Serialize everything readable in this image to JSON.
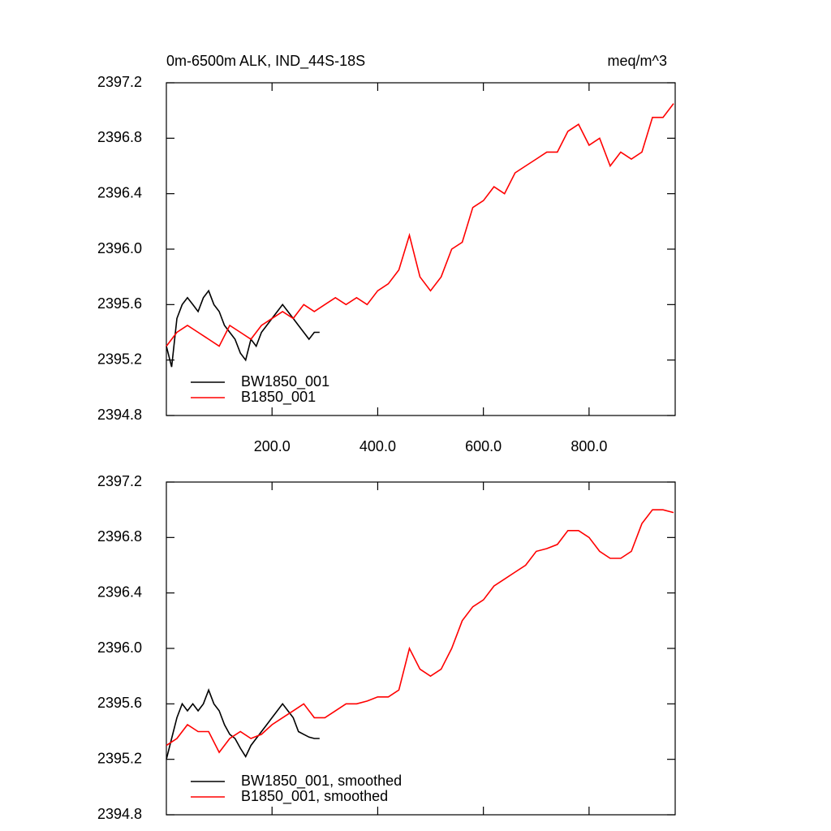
{
  "chart_data": [
    {
      "type": "line",
      "title": "0m-6500m ALK, IND_44S-18S",
      "units": "meq/m^3",
      "xlim": [
        0,
        963
      ],
      "ylim": [
        2394.8,
        2397.2
      ],
      "xticks": [
        {
          "value": 200,
          "label": "200.0"
        },
        {
          "value": 400,
          "label": "400.0"
        },
        {
          "value": 600,
          "label": "600.0"
        },
        {
          "value": 800,
          "label": "800.0"
        }
      ],
      "xtick_labels_shown": true,
      "yticks": [
        2394.8,
        2395.2,
        2395.6,
        {
          "value": 2396,
          "label": "2396.0"
        },
        2396.4,
        2396.8,
        2397.2
      ],
      "legend": "lower left",
      "series": [
        {
          "name": "BW1850_001",
          "color": "#000000",
          "x": [
            0,
            10,
            20,
            30,
            40,
            50,
            60,
            70,
            80,
            90,
            100,
            110,
            120,
            130,
            140,
            150,
            160,
            170,
            180,
            190,
            200,
            210,
            220,
            230,
            240,
            250,
            260,
            270,
            280,
            290
          ],
          "values": [
            2395.3,
            2395.15,
            2395.5,
            2395.6,
            2395.65,
            2395.6,
            2395.55,
            2395.65,
            2395.7,
            2395.6,
            2395.55,
            2395.45,
            2395.4,
            2395.35,
            2395.25,
            2395.2,
            2395.35,
            2395.3,
            2395.4,
            2395.45,
            2395.5,
            2395.55,
            2395.6,
            2395.55,
            2395.5,
            2395.45,
            2395.4,
            2395.35,
            2395.4,
            2395.4
          ]
        },
        {
          "name": "B1850_001",
          "color": "#ff0000",
          "x": [
            0,
            20,
            40,
            60,
            80,
            100,
            120,
            140,
            160,
            180,
            200,
            220,
            240,
            260,
            280,
            300,
            320,
            340,
            360,
            380,
            400,
            420,
            440,
            460,
            480,
            500,
            520,
            540,
            560,
            580,
            600,
            620,
            640,
            660,
            680,
            700,
            720,
            740,
            760,
            780,
            800,
            820,
            840,
            860,
            880,
            900,
            920,
            940,
            960
          ],
          "values": [
            2395.3,
            2395.4,
            2395.45,
            2395.4,
            2395.35,
            2395.3,
            2395.45,
            2395.4,
            2395.35,
            2395.45,
            2395.5,
            2395.55,
            2395.5,
            2395.6,
            2395.55,
            2395.6,
            2395.65,
            2395.6,
            2395.65,
            2395.6,
            2395.7,
            2395.75,
            2395.85,
            2396.1,
            2395.8,
            2395.7,
            2395.8,
            2396.0,
            2396.05,
            2396.3,
            2396.35,
            2396.45,
            2396.4,
            2396.55,
            2396.6,
            2396.65,
            2396.7,
            2396.7,
            2396.85,
            2396.9,
            2396.75,
            2396.8,
            2396.6,
            2396.7,
            2396.65,
            2396.7,
            2396.95,
            2396.95,
            2397.05
          ]
        }
      ]
    },
    {
      "type": "line",
      "xlim": [
        0,
        963
      ],
      "ylim": [
        2394.8,
        2397.2
      ],
      "xticks": [
        200,
        400,
        600,
        800
      ],
      "xtick_labels_shown": false,
      "yticks": [
        2394.8,
        2395.2,
        2395.6,
        {
          "value": 2396,
          "label": "2396.0"
        },
        2396.4,
        2396.8,
        2397.2
      ],
      "legend": "lower left",
      "series": [
        {
          "name": "BW1850_001, smoothed",
          "color": "#000000",
          "x": [
            0,
            10,
            20,
            30,
            40,
            50,
            60,
            70,
            80,
            90,
            100,
            110,
            120,
            130,
            140,
            150,
            160,
            170,
            180,
            190,
            200,
            210,
            220,
            230,
            240,
            250,
            260,
            270,
            280,
            290
          ],
          "values": [
            2395.2,
            2395.35,
            2395.5,
            2395.6,
            2395.55,
            2395.6,
            2395.55,
            2395.6,
            2395.7,
            2395.6,
            2395.55,
            2395.45,
            2395.38,
            2395.35,
            2395.28,
            2395.22,
            2395.3,
            2395.35,
            2395.4,
            2395.45,
            2395.5,
            2395.55,
            2395.6,
            2395.55,
            2395.5,
            2395.4,
            2395.38,
            2395.36,
            2395.35,
            2395.35
          ]
        },
        {
          "name": "B1850_001, smoothed",
          "color": "#ff0000",
          "x": [
            0,
            20,
            40,
            60,
            80,
            100,
            120,
            140,
            160,
            180,
            200,
            220,
            240,
            260,
            280,
            300,
            320,
            340,
            360,
            380,
            400,
            420,
            440,
            460,
            480,
            500,
            520,
            540,
            560,
            580,
            600,
            620,
            640,
            660,
            680,
            700,
            720,
            740,
            760,
            780,
            800,
            820,
            840,
            860,
            880,
            900,
            920,
            940,
            960
          ],
          "values": [
            2395.3,
            2395.35,
            2395.45,
            2395.4,
            2395.4,
            2395.25,
            2395.35,
            2395.4,
            2395.35,
            2395.38,
            2395.45,
            2395.5,
            2395.55,
            2395.6,
            2395.5,
            2395.5,
            2395.55,
            2395.6,
            2395.6,
            2395.62,
            2395.65,
            2395.65,
            2395.7,
            2396.0,
            2395.85,
            2395.8,
            2395.85,
            2396.0,
            2396.2,
            2396.3,
            2396.35,
            2396.45,
            2396.5,
            2396.55,
            2396.6,
            2396.7,
            2396.72,
            2396.75,
            2396.85,
            2396.85,
            2396.8,
            2396.7,
            2396.65,
            2396.65,
            2396.7,
            2396.9,
            2397.0,
            2397.0,
            2396.98
          ]
        }
      ]
    }
  ]
}
